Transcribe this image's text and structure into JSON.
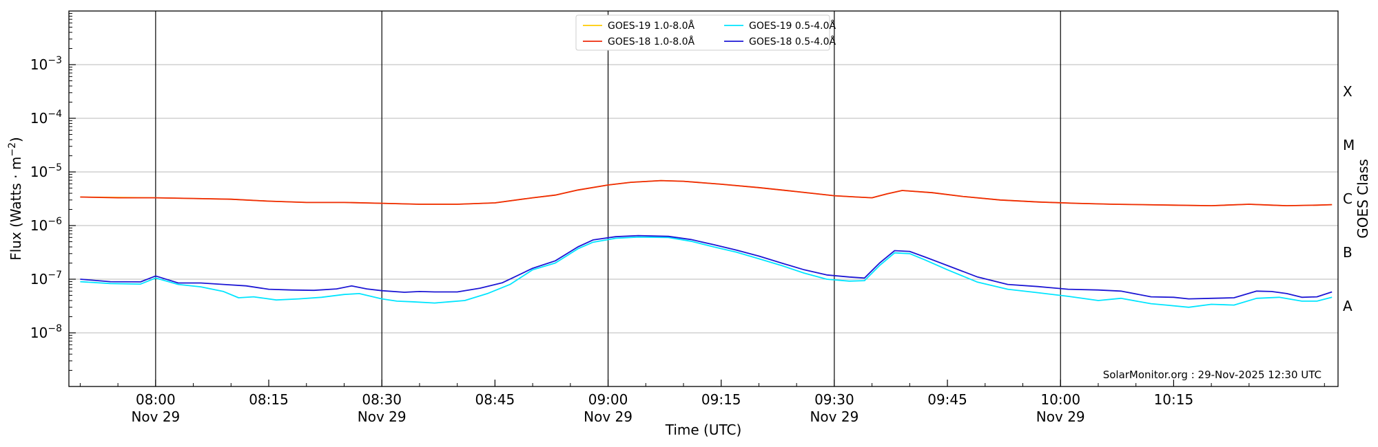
{
  "chart_data": {
    "type": "line",
    "xlabel": "Time (UTC)",
    "ylabel": "Flux (Watts · m",
    "ylabel_sup": "−2",
    "ylabel_close": ")",
    "right_label": "GOES Class",
    "ylog": true,
    "ylim": [
      1e-09,
      0.01
    ],
    "xlim_minutes": [
      -10,
      85
    ],
    "grid": "horizontal",
    "legend_position": "top-center",
    "credit": "SolarMonitor.org : 29-Nov-2025 12:30 UTC",
    "y_ticks": [
      {
        "exp": "−8",
        "value": 1e-08
      },
      {
        "exp": "−7",
        "value": 1e-07
      },
      {
        "exp": "−6",
        "value": 1e-06
      },
      {
        "exp": "−5",
        "value": 1e-05
      },
      {
        "exp": "−4",
        "value": 0.0001
      },
      {
        "exp": "−3",
        "value": 0.001
      }
    ],
    "x_ticks": [
      {
        "t": 0,
        "time": "08:00",
        "date": "Nov 29",
        "vline": true
      },
      {
        "t": 15,
        "time": "08:15",
        "date": "",
        "vline": false
      },
      {
        "t": 30,
        "time": "08:30",
        "date": "Nov 29",
        "vline": true
      },
      {
        "t": 45,
        "time": "08:45",
        "date": "",
        "vline": false
      },
      {
        "t": 60,
        "time": "09:00",
        "date": "Nov 29",
        "vline": true
      },
      {
        "t": 75,
        "time": "09:15",
        "date": "",
        "vline": false
      },
      {
        "t": 90,
        "time": "09:30",
        "date": "Nov 29",
        "vline": true
      },
      {
        "t": 105,
        "time": "09:45",
        "date": "",
        "vline": false
      },
      {
        "t": 120,
        "time": "10:00",
        "date": "Nov 29",
        "vline": true
      },
      {
        "t": 135,
        "time": "10:15",
        "date": "",
        "vline": false
      }
    ],
    "goes_classes": [
      {
        "label": "A",
        "value": 3.16e-08
      },
      {
        "label": "B",
        "value": 3.16e-07
      },
      {
        "label": "C",
        "value": 3.16e-06
      },
      {
        "label": "M",
        "value": 3.16e-05
      },
      {
        "label": "X",
        "value": 0.000316
      }
    ],
    "series": [
      {
        "name": "GOES-19 1.0-8.0Å",
        "color": "#ffcc00",
        "points": [
          [
            -10,
            3.4e-06
          ],
          [
            0,
            3.3e-06
          ],
          [
            5,
            3.2e-06
          ],
          [
            10,
            3.1e-06
          ],
          [
            15,
            2.85e-06
          ],
          [
            20,
            2.7e-06
          ],
          [
            25,
            2.7e-06
          ],
          [
            30,
            2.6e-06
          ],
          [
            35,
            2.5e-06
          ],
          [
            40,
            2.5e-06
          ],
          [
            45,
            2.65e-06
          ],
          [
            50,
            3.3e-06
          ],
          [
            53,
            3.7e-06
          ],
          [
            56,
            4.6e-06
          ],
          [
            60,
            5.7e-06
          ],
          [
            63,
            6.4e-06
          ],
          [
            67,
            6.9e-06
          ],
          [
            70,
            6.7e-06
          ],
          [
            75,
            5.9e-06
          ],
          [
            80,
            5.1e-06
          ],
          [
            85,
            4.3e-06
          ],
          [
            90,
            3.6e-06
          ],
          [
            93,
            3.4e-06
          ],
          [
            95,
            3.3e-06
          ],
          [
            97,
            3.9e-06
          ],
          [
            99,
            4.5e-06
          ],
          [
            103,
            4.1e-06
          ],
          [
            107,
            3.5e-06
          ],
          [
            112,
            3e-06
          ],
          [
            117,
            2.75e-06
          ],
          [
            122,
            2.6e-06
          ],
          [
            127,
            2.5e-06
          ],
          [
            135,
            2.4e-06
          ],
          [
            140,
            2.35e-06
          ],
          [
            145,
            2.5e-06
          ],
          [
            148,
            2.4e-06
          ],
          [
            150,
            2.35e-06
          ],
          [
            154,
            2.4e-06
          ],
          [
            156,
            2.45e-06
          ]
        ]
      },
      {
        "name": "GOES-18 1.0-8.0Å",
        "color": "#ee2a0a",
        "points": [
          [
            -10,
            3.4e-06
          ],
          [
            -5,
            3.3e-06
          ],
          [
            0,
            3.3e-06
          ],
          [
            5,
            3.2e-06
          ],
          [
            10,
            3.1e-06
          ],
          [
            15,
            2.85e-06
          ],
          [
            20,
            2.7e-06
          ],
          [
            25,
            2.7e-06
          ],
          [
            30,
            2.6e-06
          ],
          [
            35,
            2.5e-06
          ],
          [
            40,
            2.5e-06
          ],
          [
            45,
            2.65e-06
          ],
          [
            50,
            3.3e-06
          ],
          [
            53,
            3.7e-06
          ],
          [
            56,
            4.6e-06
          ],
          [
            60,
            5.7e-06
          ],
          [
            63,
            6.4e-06
          ],
          [
            67,
            6.9e-06
          ],
          [
            70,
            6.7e-06
          ],
          [
            75,
            5.9e-06
          ],
          [
            80,
            5.1e-06
          ],
          [
            85,
            4.3e-06
          ],
          [
            90,
            3.6e-06
          ],
          [
            93,
            3.4e-06
          ],
          [
            95,
            3.3e-06
          ],
          [
            97,
            3.9e-06
          ],
          [
            99,
            4.5e-06
          ],
          [
            103,
            4.1e-06
          ],
          [
            107,
            3.5e-06
          ],
          [
            112,
            3e-06
          ],
          [
            117,
            2.75e-06
          ],
          [
            122,
            2.6e-06
          ],
          [
            127,
            2.5e-06
          ],
          [
            135,
            2.4e-06
          ],
          [
            140,
            2.35e-06
          ],
          [
            145,
            2.5e-06
          ],
          [
            148,
            2.4e-06
          ],
          [
            150,
            2.35e-06
          ],
          [
            154,
            2.4e-06
          ],
          [
            156,
            2.45e-06
          ]
        ]
      },
      {
        "name": "GOES-19 0.5-4.0Å",
        "color": "#00e5ff",
        "points": [
          [
            -10,
            9e-08
          ],
          [
            -6,
            8.3e-08
          ],
          [
            -2,
            8.1e-08
          ],
          [
            0,
            1.05e-07
          ],
          [
            3,
            8e-08
          ],
          [
            6,
            7.2e-08
          ],
          [
            9,
            5.9e-08
          ],
          [
            11,
            4.5e-08
          ],
          [
            13,
            4.7e-08
          ],
          [
            16,
            4.1e-08
          ],
          [
            19,
            4.3e-08
          ],
          [
            22,
            4.6e-08
          ],
          [
            25,
            5.2e-08
          ],
          [
            27,
            5.4e-08
          ],
          [
            30,
            4.3e-08
          ],
          [
            32,
            3.9e-08
          ],
          [
            34,
            3.8e-08
          ],
          [
            37,
            3.6e-08
          ],
          [
            39,
            3.8e-08
          ],
          [
            41,
            4e-08
          ],
          [
            44,
            5.4e-08
          ],
          [
            47,
            8e-08
          ],
          [
            50,
            1.5e-07
          ],
          [
            53,
            2e-07
          ],
          [
            56,
            3.7e-07
          ],
          [
            58,
            4.9e-07
          ],
          [
            61,
            5.8e-07
          ],
          [
            64,
            6.1e-07
          ],
          [
            68,
            6e-07
          ],
          [
            71,
            5.1e-07
          ],
          [
            74,
            4e-07
          ],
          [
            77,
            3.2e-07
          ],
          [
            80,
            2.4e-07
          ],
          [
            83,
            1.8e-07
          ],
          [
            86,
            1.3e-07
          ],
          [
            89,
            1e-07
          ],
          [
            92,
            9.2e-08
          ],
          [
            94,
            9.4e-08
          ],
          [
            96,
            1.8e-07
          ],
          [
            98,
            3.1e-07
          ],
          [
            100,
            3e-07
          ],
          [
            102,
            2.3e-07
          ],
          [
            105,
            1.5e-07
          ],
          [
            109,
            8.8e-08
          ],
          [
            113,
            6.5e-08
          ],
          [
            117,
            5.6e-08
          ],
          [
            121,
            4.8e-08
          ],
          [
            125,
            4e-08
          ],
          [
            128,
            4.4e-08
          ],
          [
            132,
            3.5e-08
          ],
          [
            134,
            3.3e-08
          ],
          [
            137,
            3e-08
          ],
          [
            140,
            3.4e-08
          ],
          [
            143,
            3.3e-08
          ],
          [
            146,
            4.4e-08
          ],
          [
            149,
            4.6e-08
          ],
          [
            152,
            3.9e-08
          ],
          [
            154,
            3.9e-08
          ],
          [
            156,
            4.6e-08
          ]
        ]
      },
      {
        "name": "GOES-18 0.5-4.0Å",
        "color": "#1c16d4",
        "points": [
          [
            -10,
            1e-07
          ],
          [
            -6,
            9e-08
          ],
          [
            -2,
            8.9e-08
          ],
          [
            0,
            1.15e-07
          ],
          [
            3,
            8.5e-08
          ],
          [
            6,
            8.5e-08
          ],
          [
            9,
            8e-08
          ],
          [
            12,
            7.5e-08
          ],
          [
            15,
            6.5e-08
          ],
          [
            18,
            6.3e-08
          ],
          [
            21,
            6.2e-08
          ],
          [
            24,
            6.6e-08
          ],
          [
            26,
            7.5e-08
          ],
          [
            28,
            6.6e-08
          ],
          [
            30,
            6.1e-08
          ],
          [
            33,
            5.7e-08
          ],
          [
            35,
            5.9e-08
          ],
          [
            37,
            5.8e-08
          ],
          [
            40,
            5.8e-08
          ],
          [
            43,
            6.8e-08
          ],
          [
            46,
            8.6e-08
          ],
          [
            50,
            1.6e-07
          ],
          [
            53,
            2.2e-07
          ],
          [
            56,
            4e-07
          ],
          [
            58,
            5.4e-07
          ],
          [
            61,
            6.2e-07
          ],
          [
            64,
            6.5e-07
          ],
          [
            68,
            6.3e-07
          ],
          [
            71,
            5.5e-07
          ],
          [
            74,
            4.4e-07
          ],
          [
            77,
            3.5e-07
          ],
          [
            80,
            2.7e-07
          ],
          [
            83,
            2e-07
          ],
          [
            86,
            1.5e-07
          ],
          [
            89,
            1.2e-07
          ],
          [
            92,
            1.1e-07
          ],
          [
            94,
            1.05e-07
          ],
          [
            96,
            2e-07
          ],
          [
            98,
            3.4e-07
          ],
          [
            100,
            3.3e-07
          ],
          [
            102,
            2.6e-07
          ],
          [
            105,
            1.8e-07
          ],
          [
            109,
            1.1e-07
          ],
          [
            113,
            8e-08
          ],
          [
            117,
            7.3e-08
          ],
          [
            121,
            6.5e-08
          ],
          [
            125,
            6.3e-08
          ],
          [
            128,
            6e-08
          ],
          [
            132,
            4.7e-08
          ],
          [
            135,
            4.6e-08
          ],
          [
            137,
            4.3e-08
          ],
          [
            140,
            4.4e-08
          ],
          [
            143,
            4.5e-08
          ],
          [
            146,
            6e-08
          ],
          [
            148,
            5.9e-08
          ],
          [
            150,
            5.4e-08
          ],
          [
            152,
            4.6e-08
          ],
          [
            154,
            4.7e-08
          ],
          [
            156,
            5.8e-08
          ]
        ]
      }
    ]
  }
}
